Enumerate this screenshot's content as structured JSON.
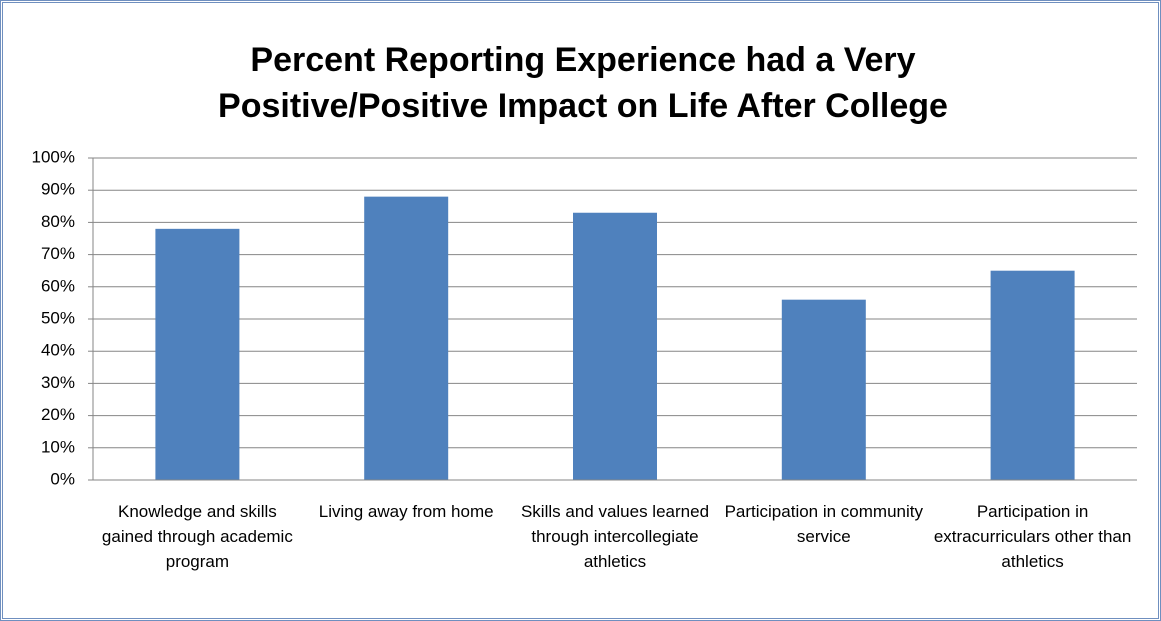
{
  "chart_data": {
    "type": "bar",
    "title": "Percent Reporting Experience had a Very Positive/Positive Impact on Life After College",
    "categories": [
      "Knowledge and skills gained through academic program",
      "Living away from home",
      "Skills and values learned through intercollegiate athletics",
      "Participation in community service",
      "Participation in extracurriculars other than athletics"
    ],
    "values": [
      78,
      88,
      83,
      56,
      65
    ],
    "color": "#4f81bd",
    "ylim": [
      0,
      100
    ],
    "yticks": [
      {
        "value": 0,
        "label": "0%"
      },
      {
        "value": 10,
        "label": "10%"
      },
      {
        "value": 20,
        "label": "20%"
      },
      {
        "value": 30,
        "label": "30%"
      },
      {
        "value": 40,
        "label": "40%"
      },
      {
        "value": 50,
        "label": "50%"
      },
      {
        "value": 60,
        "label": "60%"
      },
      {
        "value": 70,
        "label": "70%"
      },
      {
        "value": 80,
        "label": "80%"
      },
      {
        "value": 90,
        "label": "90%"
      },
      {
        "value": 100,
        "label": "100%"
      }
    ],
    "grid": true
  }
}
